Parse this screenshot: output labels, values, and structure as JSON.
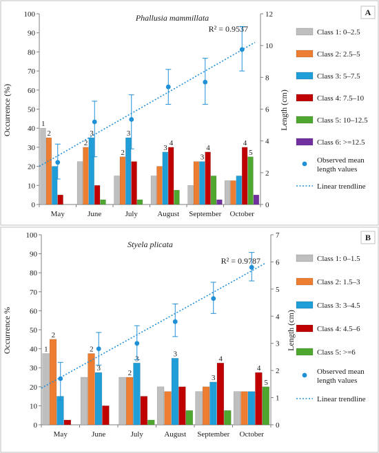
{
  "chart_data": [
    {
      "panel": "A",
      "type": "bar",
      "title": "Phallusia mammillata",
      "categories": [
        "May",
        "June",
        "July",
        "August",
        "September",
        "October"
      ],
      "ylabel": "Occurrence (%)",
      "ylim": [
        0,
        100
      ],
      "yticks": [
        0,
        10,
        20,
        30,
        40,
        50,
        60,
        70,
        80,
        90,
        100
      ],
      "y2label": "Length (cm)",
      "y2lim": [
        0,
        12
      ],
      "y2ticks": [
        0,
        2,
        4,
        6,
        8,
        10,
        12
      ],
      "r2_text": "R² = 0.9537",
      "series": [
        {
          "name": "Class 1: 0–2.5",
          "color": "#bfbfbf",
          "values": [
            40,
            22.5,
            15,
            15,
            10,
            12.5
          ],
          "labels": [
            "1",
            "",
            "",
            "",
            "",
            ""
          ]
        },
        {
          "name": "Class 2: 2.5–5",
          "color": "#ed7d31",
          "values": [
            35,
            30,
            25,
            20,
            22.5,
            12.5
          ],
          "labels": [
            "2",
            "2",
            "2",
            "",
            "",
            ""
          ]
        },
        {
          "name": "Class 3: 5–7.5",
          "color": "#1f9ed8",
          "values": [
            20,
            35,
            35,
            27.5,
            22.5,
            15
          ],
          "labels": [
            "",
            "3",
            "3",
            "3",
            "3",
            ""
          ]
        },
        {
          "name": "Class 4: 7.5–10",
          "color": "#c00000",
          "values": [
            5,
            10,
            22.5,
            30,
            27.5,
            30
          ],
          "labels": [
            "",
            "",
            "",
            "4",
            "4",
            "4"
          ]
        },
        {
          "name": "Class 5: 10–12.5",
          "color": "#4ea72e",
          "values": [
            0,
            2.5,
            2.5,
            7.5,
            15,
            25
          ],
          "labels": [
            "",
            "",
            "",
            "",
            "",
            "5"
          ]
        },
        {
          "name": "Class 6: >=12.5",
          "color": "#7030a0",
          "values": [
            0,
            0,
            0,
            0,
            2.5,
            5
          ],
          "labels": [
            "",
            "",
            "",
            "",
            "",
            ""
          ]
        }
      ],
      "mean_length": {
        "name": "Observed mean length values",
        "color": "#1f8fd6",
        "values": [
          2.65,
          5.2,
          5.35,
          7.4,
          7.7,
          9.75
        ],
        "err_low": [
          1.6,
          3.0,
          3.5,
          6.3,
          6.3,
          8.4
        ],
        "err_high": [
          3.8,
          6.5,
          6.9,
          8.5,
          9.2,
          11.2
        ]
      },
      "trendline": {
        "name": "Linear trendline",
        "color": "#1f8fd6",
        "start": 2.4,
        "end": 10.2
      }
    },
    {
      "panel": "B",
      "type": "bar",
      "title": "Styela plicata",
      "categories": [
        "May",
        "June",
        "July",
        "August",
        "September",
        "October"
      ],
      "ylabel": "Occurrence %",
      "ylim": [
        0,
        100
      ],
      "yticks": [
        0,
        10,
        20,
        30,
        40,
        50,
        60,
        70,
        80,
        90,
        100
      ],
      "y2label": "Length (cm)",
      "y2lim": [
        0,
        7
      ],
      "y2ticks": [
        0,
        1,
        2,
        3,
        4,
        5,
        6,
        7
      ],
      "r2_text": "R² = 0.9787",
      "series": [
        {
          "name": "Class 1: 0–1.5",
          "color": "#bfbfbf",
          "values": [
            37.5,
            25,
            25,
            20,
            17.5,
            17.5
          ],
          "labels": [
            "1",
            "",
            "",
            "",
            "",
            ""
          ]
        },
        {
          "name": "Class 2: 1.5–3",
          "color": "#ed7d31",
          "values": [
            45,
            37.5,
            25,
            17.5,
            20,
            17.5
          ],
          "labels": [
            "2",
            "2",
            "2",
            "",
            "",
            ""
          ]
        },
        {
          "name": "Class 3: 3–4.5",
          "color": "#1f9ed8",
          "values": [
            15,
            27.5,
            32.5,
            35,
            22.5,
            17.5
          ],
          "labels": [
            "",
            "3",
            "3",
            "3",
            "3",
            ""
          ]
        },
        {
          "name": "Class 4: 4.5–6",
          "color": "#c00000",
          "values": [
            2.5,
            10,
            15,
            20,
            32.5,
            27.5
          ],
          "labels": [
            "",
            "",
            "",
            "",
            "4",
            "4"
          ]
        },
        {
          "name": "Class 5: >=6",
          "color": "#4ea72e",
          "values": [
            0,
            0,
            2.5,
            7.5,
            7.5,
            20
          ],
          "labels": [
            "",
            "",
            "",
            "",
            "",
            "5"
          ]
        }
      ],
      "mean_length": {
        "name": "Observed mean length values",
        "color": "#1f8fd6",
        "values": [
          1.7,
          2.8,
          3.0,
          3.8,
          4.65,
          5.8
        ],
        "err_low": [
          0.9,
          2.2,
          2.4,
          3.25,
          4.1,
          5.3
        ],
        "err_high": [
          2.3,
          3.4,
          3.65,
          4.45,
          5.25,
          6.35
        ]
      },
      "trendline": {
        "name": "Linear trendline",
        "color": "#1f8fd6",
        "start": 1.35,
        "end": 5.95
      }
    }
  ]
}
